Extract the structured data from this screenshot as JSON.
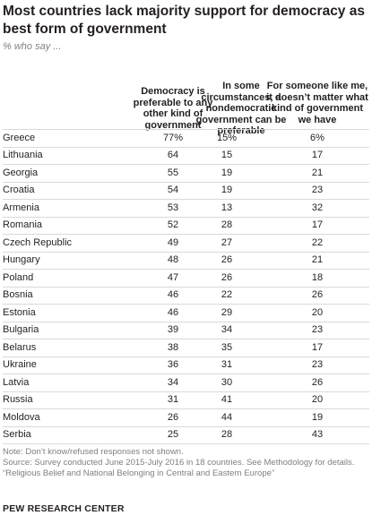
{
  "title": "Most countries lack majority support for democracy as best form of government",
  "subtitle": "% who say ...",
  "chart_data": {
    "type": "table",
    "columns": [
      "Democracy is preferable to any other kind of government",
      "In some circumstances, a nondemocratic government can be preferable",
      "For someone like me, it doesn’t matter what kind of government we have"
    ],
    "rows": [
      {
        "country": "Greece",
        "values": [
          "77%",
          "15%",
          "6%"
        ]
      },
      {
        "country": "Lithuania",
        "values": [
          "64",
          "15",
          "17"
        ]
      },
      {
        "country": "Georgia",
        "values": [
          "55",
          "19",
          "21"
        ]
      },
      {
        "country": "Croatia",
        "values": [
          "54",
          "19",
          "23"
        ]
      },
      {
        "country": "Armenia",
        "values": [
          "53",
          "13",
          "32"
        ]
      },
      {
        "country": "Romania",
        "values": [
          "52",
          "28",
          "17"
        ]
      },
      {
        "country": "Czech Republic",
        "values": [
          "49",
          "27",
          "22"
        ]
      },
      {
        "country": "Hungary",
        "values": [
          "48",
          "26",
          "21"
        ]
      },
      {
        "country": "Poland",
        "values": [
          "47",
          "26",
          "18"
        ]
      },
      {
        "country": "Bosnia",
        "values": [
          "46",
          "22",
          "26"
        ]
      },
      {
        "country": "Estonia",
        "values": [
          "46",
          "29",
          "20"
        ]
      },
      {
        "country": "Bulgaria",
        "values": [
          "39",
          "34",
          "23"
        ]
      },
      {
        "country": "Belarus",
        "values": [
          "38",
          "35",
          "17"
        ]
      },
      {
        "country": "Ukraine",
        "values": [
          "36",
          "31",
          "23"
        ]
      },
      {
        "country": "Latvia",
        "values": [
          "34",
          "30",
          "26"
        ]
      },
      {
        "country": "Russia",
        "values": [
          "31",
          "41",
          "20"
        ]
      },
      {
        "country": "Moldova",
        "values": [
          "26",
          "44",
          "19"
        ]
      },
      {
        "country": "Serbia",
        "values": [
          "25",
          "28",
          "43"
        ]
      }
    ]
  },
  "notes": {
    "note": "Note: Don’t know/refused responses not shown.",
    "source": "Source: Survey conducted June 2015-July 2016 in 18 countries. See Methodology for details.",
    "report": "“Religious Belief and National Belonging in Central and Eastern Europe”"
  },
  "brand": "PEW RESEARCH CENTER"
}
